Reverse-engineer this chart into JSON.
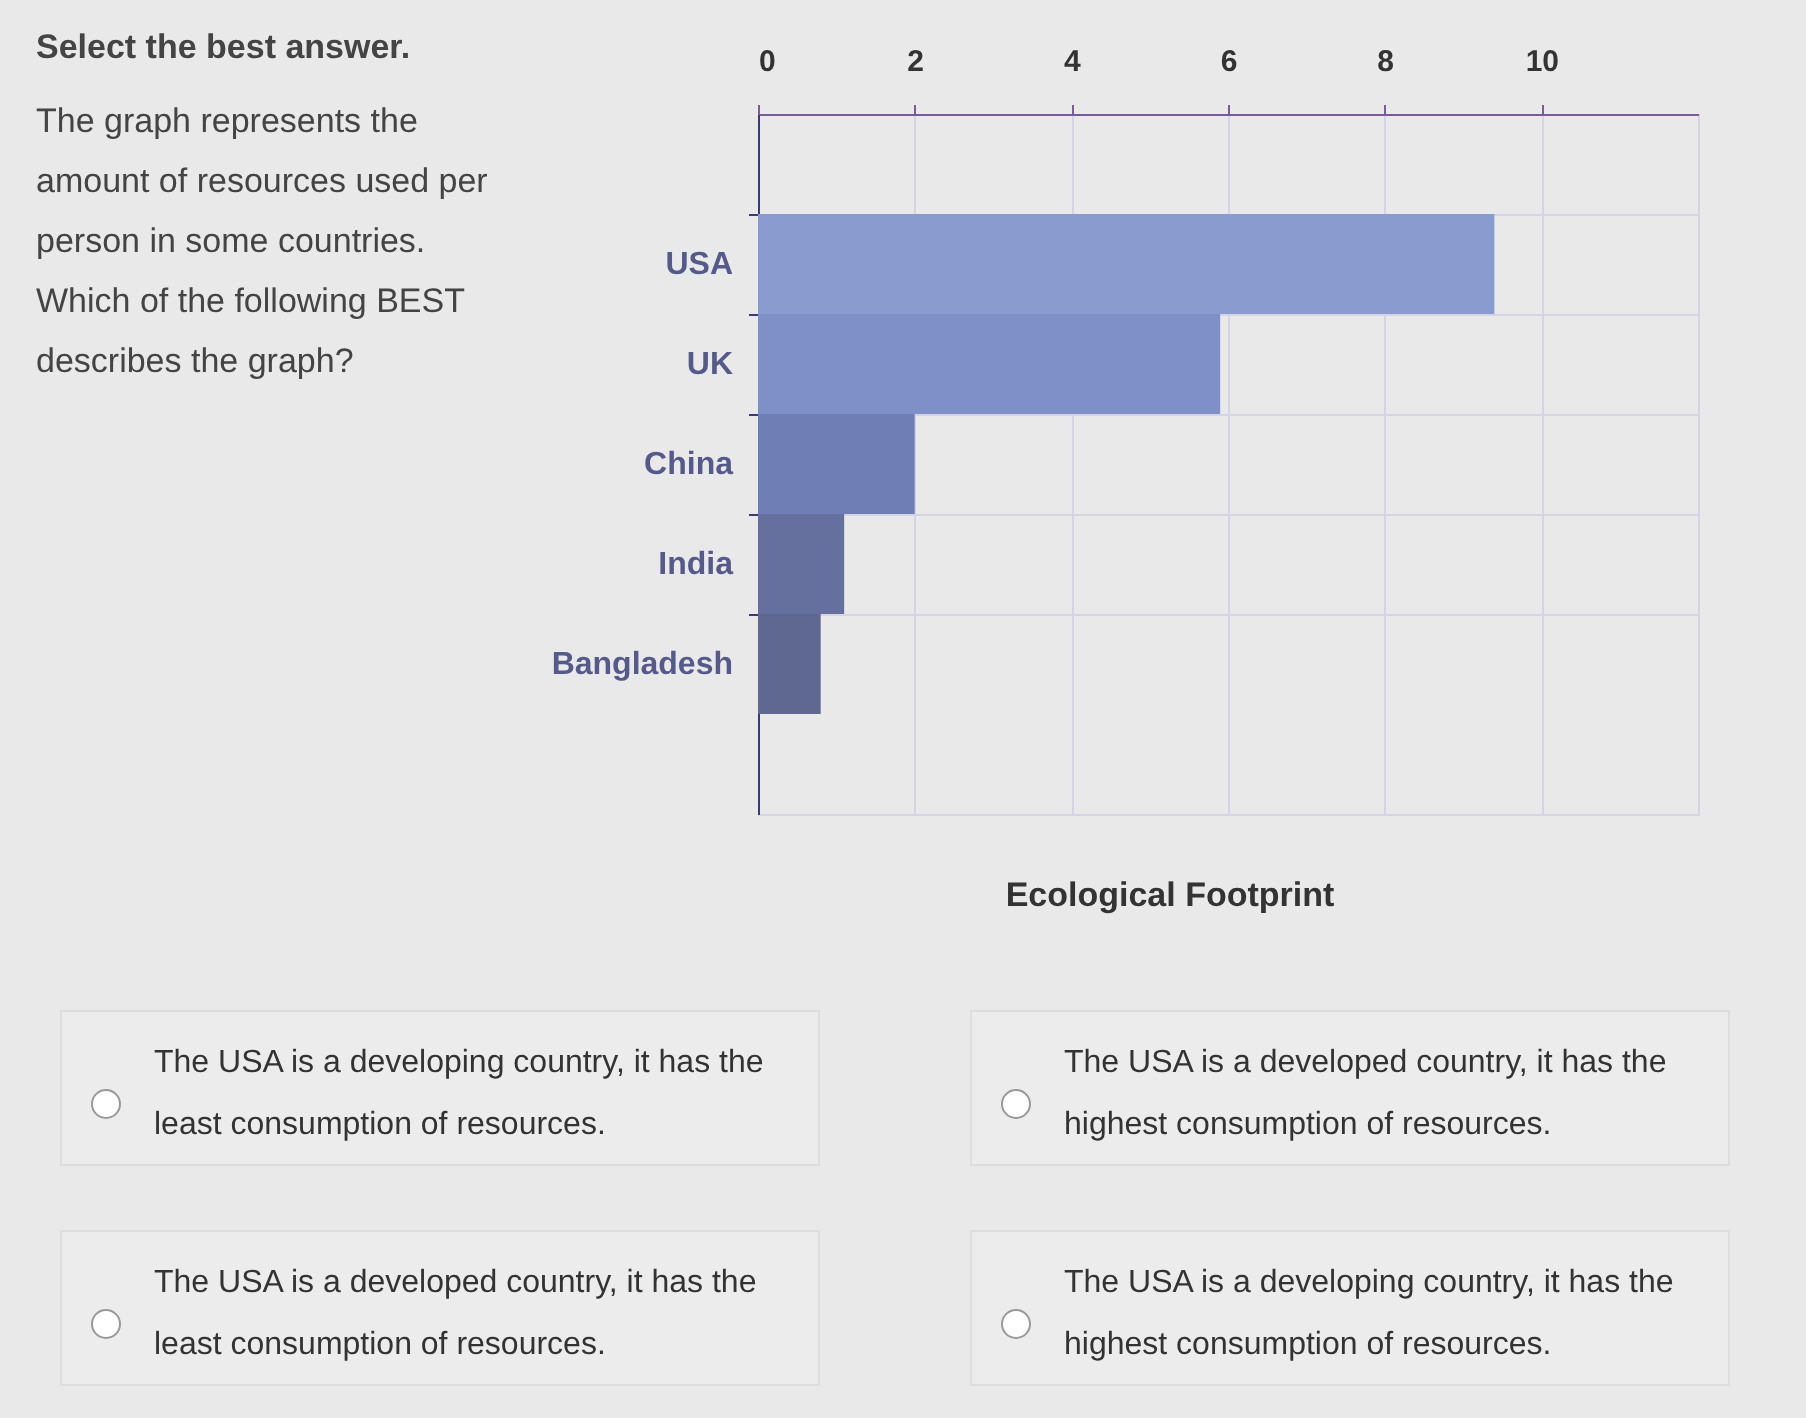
{
  "chart_data": {
    "type": "bar",
    "orientation": "horizontal",
    "title": "Select the best answer.",
    "subtitle": "The graph represents the amount of resources used per person in some countries.\nWhich of the following BEST describes the graph?",
    "xlabel": "Ecological Footprint",
    "categories": [
      "USA",
      "UK",
      "China",
      "India",
      "Bangladesh"
    ],
    "values": [
      9.4,
      5.9,
      2.0,
      1.1,
      0.8
    ],
    "colors": [
      "#8a9bcf",
      "#7f90c9",
      "#6f7eb5",
      "#65709f",
      "#5e6890"
    ],
    "xlim": [
      0,
      12
    ],
    "xticks": [
      0,
      2,
      4,
      6,
      8,
      10
    ],
    "grid": true,
    "annotations": [
      "The USA is a developing country, it has the least consumption of resources.",
      "The USA is a developed country, it has the highest consumption of resources.",
      "The USA is a developed country, it has the least consumption of resources.",
      "The USA is a developing country, it has the highest consumption of resources."
    ]
  }
}
